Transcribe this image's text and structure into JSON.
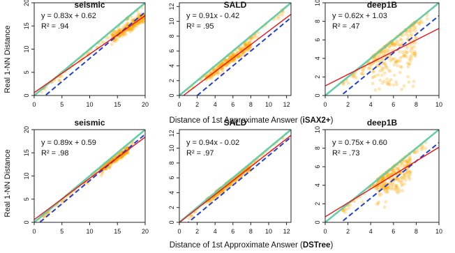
{
  "figure": {
    "ylabel": "Real 1-NN Distance",
    "row_xlabels": [
      {
        "prefix": "Distance of 1st Approximate Answer (",
        "bold": "iSAX2+",
        "suffix": ")"
      },
      {
        "prefix": "Distance of 1st Approximate Answer (",
        "bold": "DSTree",
        "suffix": ")"
      }
    ]
  },
  "colors": {
    "identity_line": "#66cdaa",
    "fit_line": "#e8131b",
    "offset_line": "#1f3fd1",
    "points": "#ffa500"
  },
  "chart_data": [
    {
      "type": "scatter",
      "title": "seismic",
      "method": "iSAX2+",
      "equation": "y = 0.83x + 0.62",
      "r2": "R² = .94",
      "xlim": [
        0,
        20
      ],
      "ylim": [
        0,
        20
      ],
      "xticks": [
        0,
        5,
        10,
        15,
        20
      ],
      "yticks": [
        0,
        5,
        10,
        15,
        20
      ],
      "fit": {
        "slope": 0.83,
        "intercept": 0.62
      },
      "lower_bound_offset": 2.0,
      "points_summary": {
        "x_range": [
          1,
          20
        ],
        "dense_region_x": [
          14,
          20
        ],
        "dense_region_y": [
          14,
          18
        ]
      }
    },
    {
      "type": "scatter",
      "title": "SALD",
      "method": "iSAX2+",
      "equation": "y = 0.91x - 0.42",
      "r2": "R² = .95",
      "xlim": [
        0,
        12.5
      ],
      "ylim": [
        0,
        12.5
      ],
      "xticks": [
        0,
        2,
        4,
        6,
        8,
        10,
        12
      ],
      "yticks": [
        0,
        2,
        4,
        6,
        8,
        10,
        12
      ],
      "fit": {
        "slope": 0.91,
        "intercept": -0.42
      },
      "lower_bound_offset": 2.0,
      "points_summary": {
        "x_range": [
          1,
          12
        ],
        "dense_region_x": [
          3,
          8
        ],
        "dense_region_y": [
          2.5,
          7
        ]
      }
    },
    {
      "type": "scatter",
      "title": "deep1B",
      "method": "iSAX2+",
      "equation": "y = 0.62x + 1.03",
      "r2": "R² = .47",
      "xlim": [
        0,
        10
      ],
      "ylim": [
        0,
        10
      ],
      "xticks": [
        0,
        2,
        4,
        6,
        8,
        10
      ],
      "yticks": [
        0,
        2,
        4,
        6,
        8,
        10
      ],
      "fit": {
        "slope": 0.62,
        "intercept": 1.03
      },
      "lower_bound_offset": 1.4,
      "points_summary": {
        "x_range": [
          1.5,
          9
        ],
        "dense_region_x": [
          4,
          8
        ],
        "dense_region_y": [
          3.5,
          6.5
        ]
      }
    },
    {
      "type": "scatter",
      "title": "seismic",
      "method": "DSTree",
      "equation": "y = 0.89x + 0.59",
      "r2": "R² = .98",
      "xlim": [
        0,
        20
      ],
      "ylim": [
        0,
        20
      ],
      "xticks": [
        0,
        5,
        10,
        15,
        20
      ],
      "yticks": [
        0,
        5,
        10,
        15,
        20
      ],
      "fit": {
        "slope": 0.89,
        "intercept": 0.59
      },
      "lower_bound_offset": 1.0,
      "points_summary": {
        "x_range": [
          1,
          18
        ],
        "dense_region_x": [
          12,
          17
        ],
        "dense_region_y": [
          11,
          16
        ]
      }
    },
    {
      "type": "scatter",
      "title": "SALD",
      "method": "DSTree",
      "equation": "y = 0.94x - 0.02",
      "r2": "R² = .97",
      "xlim": [
        0,
        12.5
      ],
      "ylim": [
        0,
        12.5
      ],
      "xticks": [
        0,
        2,
        4,
        6,
        8,
        10,
        12
      ],
      "yticks": [
        0,
        2,
        4,
        6,
        8,
        10,
        12
      ],
      "fit": {
        "slope": 0.94,
        "intercept": -0.02
      },
      "lower_bound_offset": 1.0,
      "points_summary": {
        "x_range": [
          1,
          12
        ],
        "dense_region_x": [
          3,
          8
        ],
        "dense_region_y": [
          3,
          7.5
        ]
      }
    },
    {
      "type": "scatter",
      "title": "deep1B",
      "method": "DSTree",
      "equation": "y = 0.75x + 0.60",
      "r2": "R² = .73",
      "xlim": [
        0,
        10
      ],
      "ylim": [
        0,
        10
      ],
      "xticks": [
        0,
        2,
        4,
        6,
        8,
        10
      ],
      "yticks": [
        0,
        2,
        4,
        6,
        8,
        10
      ],
      "fit": {
        "slope": 0.75,
        "intercept": 0.6
      },
      "lower_bound_offset": 1.4,
      "points_summary": {
        "x_range": [
          1.5,
          9
        ],
        "dense_region_x": [
          4.5,
          7.5
        ],
        "dense_region_y": [
          3.5,
          6.5
        ]
      }
    }
  ]
}
